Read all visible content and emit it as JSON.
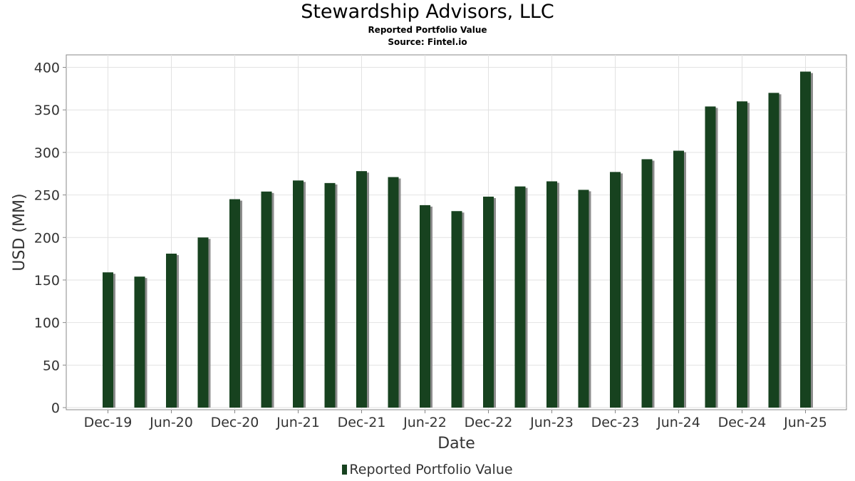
{
  "chart_data": {
    "type": "bar",
    "title": "Stewardship Advisors, LLC",
    "subtitle": "Reported Portfolio Value",
    "source": "Source: Fintel.io",
    "xlabel": "Date",
    "ylabel": "USD (MM)",
    "ylim": [
      0,
      413
    ],
    "yticks": [
      0,
      50,
      100,
      150,
      200,
      250,
      300,
      350,
      400
    ],
    "xtick_labels": [
      "Dec-19",
      "Jun-20",
      "Dec-20",
      "Jun-21",
      "Dec-21",
      "Jun-22",
      "Dec-22",
      "Jun-23",
      "Dec-23",
      "Jun-24",
      "Dec-24",
      "Jun-25"
    ],
    "categories": [
      "Dec-19",
      "Mar-20",
      "Jun-20",
      "Sep-20",
      "Dec-20",
      "Mar-21",
      "Jun-21",
      "Sep-21",
      "Dec-21",
      "Mar-22",
      "Jun-22",
      "Sep-22",
      "Dec-22",
      "Mar-23",
      "Jun-23",
      "Sep-23",
      "Dec-23",
      "Mar-24",
      "Jun-24",
      "Sep-24",
      "Dec-24",
      "Mar-25",
      "Jun-25"
    ],
    "series": [
      {
        "name": "Reported Portfolio Value",
        "values": [
          159,
          154,
          181,
          200,
          245,
          254,
          267,
          264,
          278,
          271,
          238,
          231,
          248,
          260,
          266,
          256,
          277,
          292,
          302,
          354,
          360,
          370,
          395
        ]
      }
    ],
    "grid": true,
    "legend": "bottom-center",
    "colors": {
      "bar": "#17421f",
      "shadow": "#8c8c8c",
      "grid": "#e2e2e2",
      "axis": "#888888"
    }
  }
}
